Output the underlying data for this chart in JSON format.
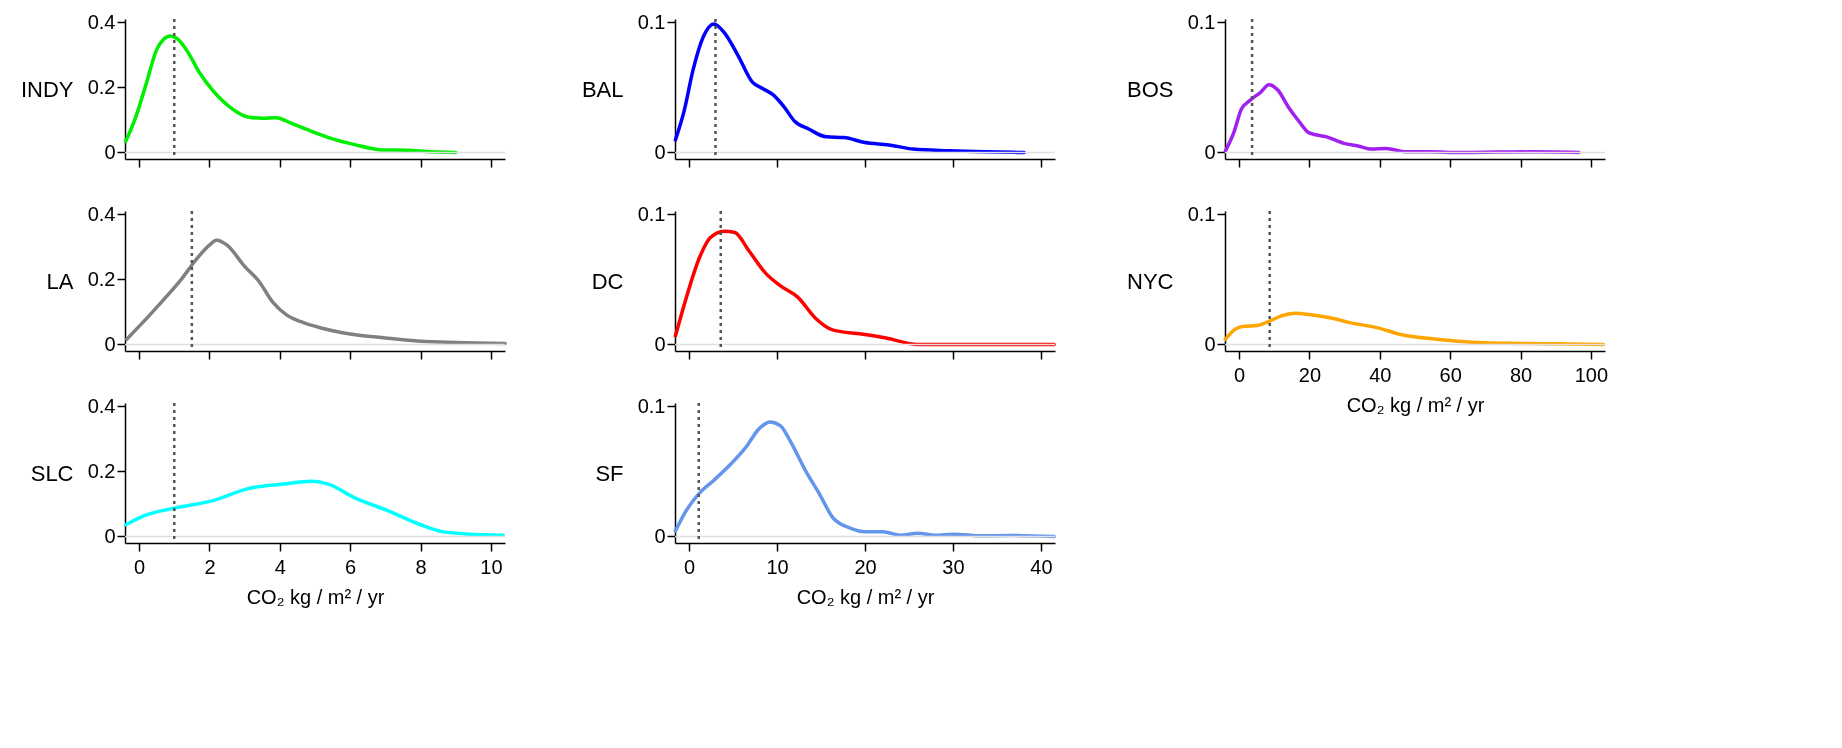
{
  "chart_data": [
    {
      "type": "line",
      "ylabel": "INDY",
      "tick_labels": "y",
      "xlim": [
        -0.4,
        10.4
      ],
      "xticks": [
        0,
        2,
        4,
        6,
        8,
        10
      ],
      "ylim": [
        -0.02,
        0.41
      ],
      "yticks": [
        0,
        0.2,
        0.4
      ],
      "series": [
        {
          "color": "#00ee00",
          "x": [
            -0.38,
            -0.1,
            0.2,
            0.5,
            0.7,
            0.88,
            1.1,
            1.4,
            1.7,
            2.1,
            2.6,
            3.1,
            3.5,
            3.9,
            4.3,
            4.9,
            5.5,
            6.1,
            6.9,
            7.6,
            8.3,
            9.0
          ],
          "values": [
            0.034,
            0.107,
            0.21,
            0.316,
            0.348,
            0.358,
            0.348,
            0.306,
            0.248,
            0.19,
            0.138,
            0.109,
            0.105,
            0.107,
            0.091,
            0.065,
            0.042,
            0.025,
            0.008,
            0.007,
            0.002,
            0.0
          ]
        }
      ],
      "ref_lines": [
        {
          "axis": "y",
          "value": 0,
          "color": "#e0e0e0"
        },
        {
          "axis": "x",
          "value": 1.0,
          "color": "#555555",
          "line_style": "dotted"
        }
      ]
    },
    {
      "type": "line",
      "ylabel": "BAL",
      "tick_labels": "y",
      "xlim": [
        -1.6,
        41.6
      ],
      "xticks": [
        0,
        10,
        20,
        30,
        40
      ],
      "ylim": [
        -0.005,
        0.1025
      ],
      "yticks": [
        0,
        0.1
      ],
      "series": [
        {
          "color": "#0000ff",
          "x": [
            -1.55,
            -0.56,
            0.44,
            1.63,
            2.83,
            4.0,
            5.6,
            7.2,
            8.4,
            9.6,
            10.8,
            12.0,
            13.6,
            15.6,
            17.6,
            20.0,
            22.7,
            25.5,
            29.5,
            33.5,
            38.1
          ],
          "values": [
            0.0097,
            0.032,
            0.063,
            0.089,
            0.0987,
            0.092,
            0.074,
            0.054,
            0.049,
            0.044,
            0.035,
            0.024,
            0.018,
            0.012,
            0.0115,
            0.0076,
            0.0058,
            0.0026,
            0.0013,
            0.0005,
            0.0
          ]
        }
      ],
      "ref_lines": [
        {
          "axis": "y",
          "value": 0,
          "color": "#e0e0e0"
        },
        {
          "axis": "x",
          "value": 3.0,
          "color": "#555555",
          "line_style": "dotted"
        }
      ]
    },
    {
      "type": "line",
      "ylabel": "BOS",
      "tick_labels": "y",
      "xlim": [
        -4,
        104
      ],
      "xticks": [
        0,
        20,
        40,
        60,
        80,
        100
      ],
      "ylim": [
        -0.005,
        0.1025
      ],
      "yticks": [
        0,
        0.1
      ],
      "series": [
        {
          "color": "#a020f0",
          "x": [
            -3.9,
            -1.4,
            0.6,
            3.1,
            6.0,
            8.5,
            11.0,
            14.0,
            17.0,
            19.9,
            24.9,
            29.8,
            33.8,
            37.7,
            41.7,
            47.6,
            53.6,
            63.5,
            73.4,
            83.3,
            96.6
          ],
          "values": [
            0.001,
            0.016,
            0.033,
            0.04,
            0.046,
            0.052,
            0.048,
            0.035,
            0.024,
            0.015,
            0.012,
            0.007,
            0.005,
            0.0026,
            0.0031,
            0.0005,
            0.0005,
            0.0,
            0.0003,
            0.0005,
            0.0
          ]
        }
      ],
      "ref_lines": [
        {
          "axis": "y",
          "value": 0,
          "color": "#e0e0e0"
        },
        {
          "axis": "x",
          "value": 3.7,
          "color": "#555555",
          "line_style": "dotted"
        }
      ]
    },
    {
      "type": "line",
      "ylabel": "LA",
      "tick_labels": "y",
      "xlim": [
        -0.4,
        10.4
      ],
      "xticks": [
        0,
        2,
        4,
        6,
        8,
        10
      ],
      "ylim": [
        -0.02,
        0.41
      ],
      "yticks": [
        0,
        0.2,
        0.4
      ],
      "series": [
        {
          "color": "#808080",
          "x": [
            -0.35,
            0.3,
            0.8,
            1.2,
            1.6,
            2.0,
            2.2,
            2.5,
            3.0,
            3.4,
            3.8,
            4.2,
            4.6,
            5.2,
            6.0,
            7.0,
            8.0,
            9.0,
            10.4
          ],
          "values": [
            0.016,
            0.09,
            0.15,
            0.2,
            0.258,
            0.305,
            0.32,
            0.305,
            0.24,
            0.195,
            0.13,
            0.09,
            0.07,
            0.05,
            0.032,
            0.02,
            0.01,
            0.006,
            0.003
          ]
        }
      ],
      "ref_lines": [
        {
          "axis": "y",
          "value": 0,
          "color": "#e0e0e0"
        },
        {
          "axis": "x",
          "value": 1.5,
          "color": "#555555",
          "line_style": "dotted"
        }
      ]
    },
    {
      "type": "line",
      "ylabel": "DC",
      "tick_labels": "y",
      "xlim": [
        -1.6,
        41.6
      ],
      "xticks": [
        0,
        10,
        20,
        30,
        40
      ],
      "ylim": [
        -0.005,
        0.1025
      ],
      "yticks": [
        0,
        0.1
      ],
      "series": [
        {
          "color": "#ff0000",
          "x": [
            -1.55,
            -0.36,
            1.2,
            2.4,
            4.0,
            5.2,
            6.8,
            8.8,
            10.4,
            12.4,
            14.4,
            16.4,
            19.6,
            22.4,
            26.0,
            41.5
          ],
          "values": [
            0.0066,
            0.035,
            0.067,
            0.082,
            0.087,
            0.086,
            0.072,
            0.054,
            0.045,
            0.036,
            0.02,
            0.011,
            0.008,
            0.005,
            0.0,
            0.0
          ]
        }
      ],
      "ref_lines": [
        {
          "axis": "y",
          "value": 0,
          "color": "#e0e0e0"
        },
        {
          "axis": "x",
          "value": 3.6,
          "color": "#555555",
          "line_style": "dotted"
        }
      ]
    },
    {
      "type": "line",
      "ylabel": "NYC",
      "xlabel": "CO₂  kg / m² / yr",
      "xlim": [
        -4,
        104
      ],
      "xticks": [
        0,
        20,
        40,
        60,
        80,
        100
      ],
      "ylim": [
        -0.005,
        0.1025
      ],
      "yticks": [
        0,
        0.1
      ],
      "series": [
        {
          "color": "#ffa500",
          "x": [
            -3.9,
            -0.9,
            1.6,
            5.0,
            8.7,
            12.0,
            15.9,
            19.9,
            25.8,
            31.8,
            39.7,
            45.6,
            51.6,
            59.5,
            67.4,
            79.3,
            91.1,
            103.6
          ],
          "values": [
            0.004,
            0.012,
            0.014,
            0.0145,
            0.018,
            0.022,
            0.024,
            0.023,
            0.0205,
            0.0166,
            0.0126,
            0.0079,
            0.0053,
            0.0032,
            0.0016,
            0.0008,
            0.0005,
            0.0
          ]
        }
      ],
      "ref_lines": [
        {
          "axis": "y",
          "value": 0,
          "color": "#e0e0e0"
        },
        {
          "axis": "x",
          "value": 8.7,
          "color": "#555555",
          "line_style": "dotted"
        }
      ]
    },
    {
      "type": "line",
      "ylabel": "SLC",
      "xlabel": "CO₂  kg / m² / yr",
      "xlim": [
        -0.4,
        10.4
      ],
      "xticks": [
        0,
        2,
        4,
        6,
        8,
        10
      ],
      "ylim": [
        -0.02,
        0.41
      ],
      "yticks": [
        0,
        0.2,
        0.4
      ],
      "series": [
        {
          "color": "#00ffff",
          "x": [
            -0.38,
            0.1,
            1.0,
            2.1,
            3.1,
            4.1,
            4.9,
            5.4,
            6.1,
            7.1,
            8.0,
            8.6,
            9.3,
            10.35
          ],
          "values": [
            0.036,
            0.062,
            0.087,
            0.11,
            0.147,
            0.161,
            0.17,
            0.16,
            0.12,
            0.078,
            0.036,
            0.015,
            0.008,
            0.004
          ]
        }
      ],
      "ref_lines": [
        {
          "axis": "y",
          "value": 0,
          "color": "#e0e0e0"
        },
        {
          "axis": "x",
          "value": 1.0,
          "color": "#555555",
          "line_style": "dotted"
        }
      ]
    },
    {
      "type": "line",
      "ylabel": "SF",
      "xlabel": "CO₂  kg / m² / yr",
      "xlim": [
        -1.6,
        41.6
      ],
      "xticks": [
        0,
        10,
        20,
        30,
        40
      ],
      "ylim": [
        -0.005,
        0.1025
      ],
      "yticks": [
        0,
        0.1
      ],
      "series": [
        {
          "color": "#6495ed",
          "x": [
            -1.55,
            -0.36,
            1.1,
            2.8,
            4.8,
            6.4,
            8.0,
            9.2,
            10.4,
            11.6,
            13.2,
            14.8,
            16.4,
            18.4,
            20.0,
            22.0,
            24.0,
            26.0,
            28.0,
            30.0,
            33.2,
            36.3,
            41.5
          ],
          "values": [
            0.0042,
            0.0195,
            0.0327,
            0.043,
            0.056,
            0.068,
            0.083,
            0.088,
            0.085,
            0.072,
            0.051,
            0.033,
            0.014,
            0.0063,
            0.0037,
            0.0037,
            0.001,
            0.0024,
            0.001,
            0.0018,
            0.0005,
            0.0008,
            0.0
          ]
        }
      ],
      "ref_lines": [
        {
          "axis": "y",
          "value": 0,
          "color": "#e0e0e0"
        },
        {
          "axis": "x",
          "value": 1.1,
          "color": "#555555",
          "line_style": "dotted"
        }
      ]
    }
  ]
}
